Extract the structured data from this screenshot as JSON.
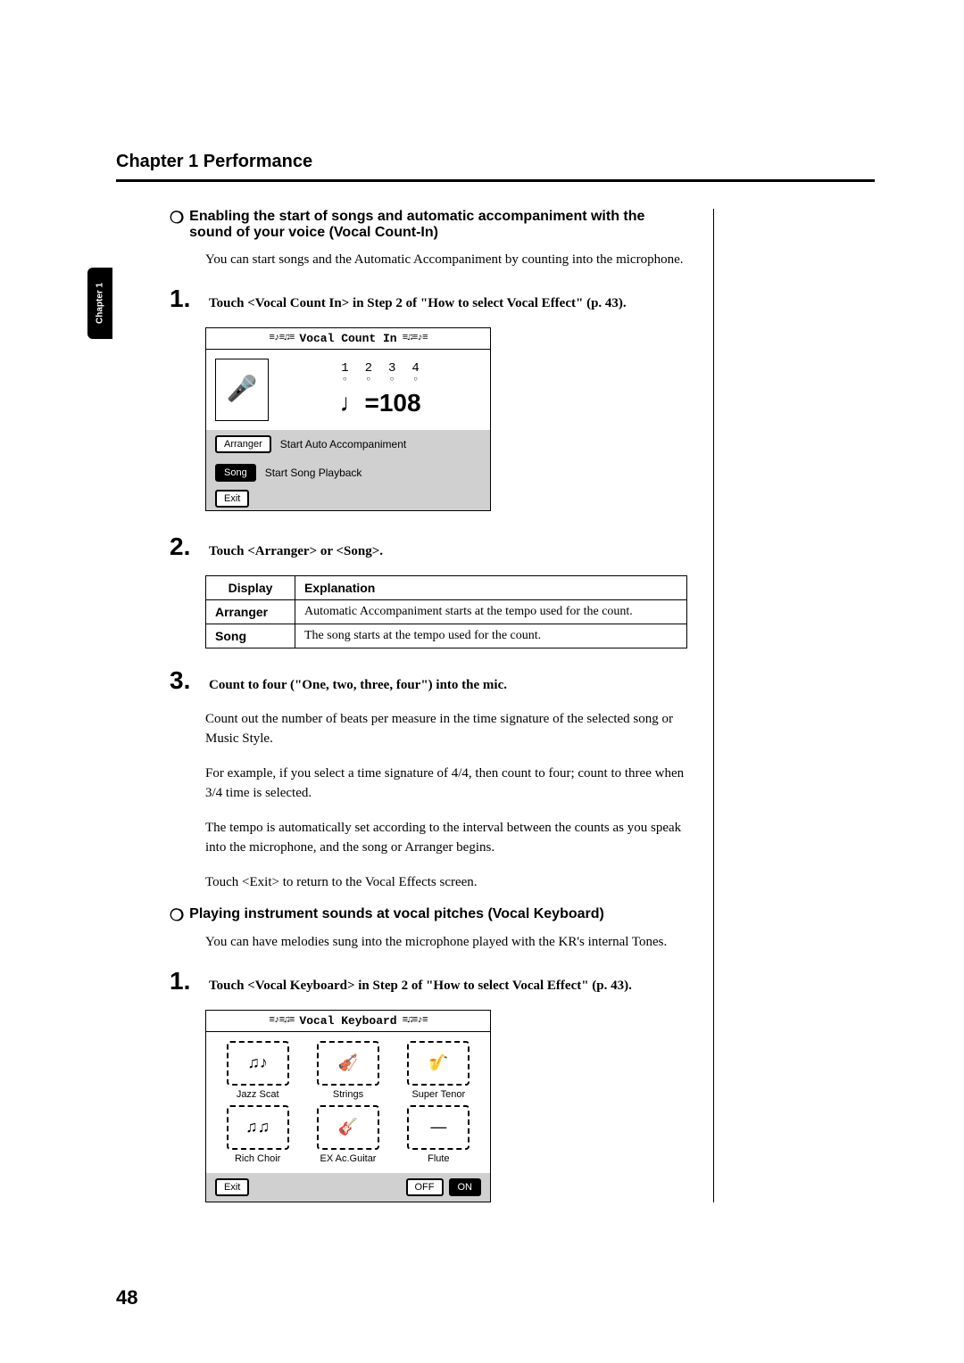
{
  "chapter_title": "Chapter 1 Performance",
  "side_tab": "Chapter 1",
  "page_number": "48",
  "section1": {
    "heading": "Enabling the start of songs and automatic accompaniment with the sound of your voice (Vocal Count-In)",
    "intro": "You can start songs and the Automatic Accompaniment by counting into the microphone.",
    "step1": {
      "num": "1.",
      "text": "Touch <Vocal Count In> in Step 2 of \"How to select Vocal Effect\" (p. 43)."
    },
    "screenshot": {
      "title": "Vocal Count In",
      "counts": [
        "1",
        "2",
        "3",
        "4"
      ],
      "tempo_prefix": "♩=",
      "tempo_value": "108",
      "arranger_btn": "Arranger",
      "arranger_label": "Start Auto Accompaniment",
      "song_btn": "Song",
      "song_label": "Start Song Playback",
      "exit_btn": "Exit"
    },
    "step2": {
      "num": "2.",
      "text": "Touch <Arranger> or <Song>."
    },
    "table": {
      "headers": [
        "Display",
        "Explanation"
      ],
      "rows": [
        [
          "Arranger",
          "Automatic Accompaniment starts at the tempo used for the count."
        ],
        [
          "Song",
          "The song starts at the tempo used for the count."
        ]
      ]
    },
    "step3": {
      "num": "3.",
      "text": "Count to four (\"One, two, three, four\") into the mic.",
      "para1": "Count out the number of beats per measure in the time signature of the selected song or Music Style.",
      "para2": "For example, if you select a time signature of 4/4, then count to four; count to three when 3/4 time is selected.",
      "para3": "The tempo is automatically set according to the interval between the counts as you speak into the microphone, and the song or Arranger begins.",
      "para4": "Touch <Exit> to return to the Vocal Effects screen."
    }
  },
  "section2": {
    "heading": "Playing instrument sounds at vocal pitches (Vocal Keyboard)",
    "intro": "You can have melodies sung into the microphone played with the KR's internal Tones.",
    "step1": {
      "num": "1.",
      "text": "Touch <Vocal Keyboard> in Step 2 of \"How to select Vocal Effect\" (p. 43)."
    },
    "screenshot": {
      "title": "Vocal Keyboard",
      "items": [
        {
          "label": "Jazz Scat",
          "icon": "♫♪"
        },
        {
          "label": "Strings",
          "icon": "🎻"
        },
        {
          "label": "Super Tenor",
          "icon": "🎷"
        },
        {
          "label": "Rich Choir",
          "icon": "♫♫"
        },
        {
          "label": "EX Ac.Guitar",
          "icon": "🎸"
        },
        {
          "label": "Flute",
          "icon": "—"
        }
      ],
      "exit_btn": "Exit",
      "off_btn": "OFF",
      "on_btn": "ON"
    }
  }
}
